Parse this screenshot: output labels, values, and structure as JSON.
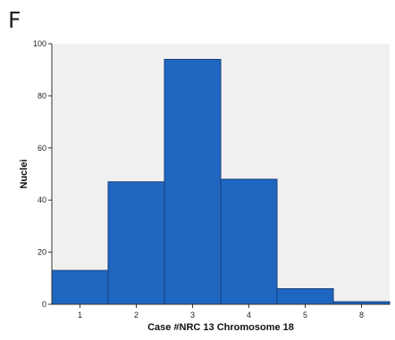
{
  "panel_label": "F",
  "chart_data": {
    "type": "bar",
    "categories": [
      "1",
      "2",
      "3",
      "4",
      "5",
      "8"
    ],
    "values": [
      13,
      47,
      94,
      48,
      6,
      1
    ],
    "title": "",
    "xlabel": "Case #NRC 13 Chromosome 18",
    "ylabel": "Nuclei",
    "ylim": [
      0,
      100
    ],
    "yticks": [
      0,
      20,
      40,
      60,
      80,
      100
    ],
    "bar_color": "#1f66c1",
    "bar_edge_color": "#1a3f7a",
    "plot_background": "#f0f0f0",
    "grid": false,
    "legend": "none"
  }
}
